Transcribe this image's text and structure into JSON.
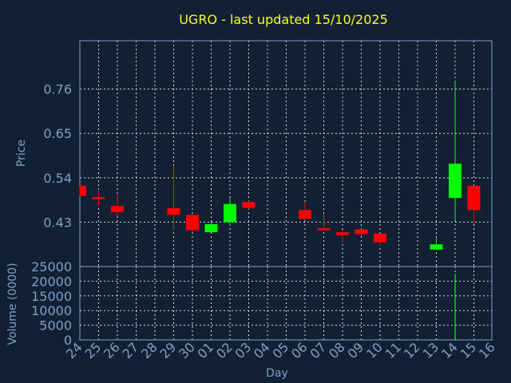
{
  "chart_data": [
    {
      "type": "candlestick",
      "title": "UGRO - last updated 15/10/2025",
      "ylabel": "Price",
      "ylim": [
        0.32,
        0.88
      ],
      "yticks": [
        0.43,
        0.54,
        0.65,
        0.76
      ],
      "ytick_labels": [
        "0.43",
        "0.54",
        "0.65",
        "0.76"
      ],
      "x_tick_labels": [
        "24",
        "25",
        "26",
        "27",
        "28",
        "29",
        "30",
        "01",
        "02",
        "03",
        "04",
        "05",
        "06",
        "07",
        "08",
        "09",
        "10",
        "11",
        "12",
        "13",
        "14",
        "15",
        "16"
      ],
      "up_color": "#00ff00",
      "down_color": "#ff0000",
      "candles": [
        {
          "day": "24",
          "open": 0.52,
          "high": 0.52,
          "low": 0.495,
          "close": 0.495
        },
        {
          "day": "25",
          "open": 0.492,
          "high": 0.512,
          "low": 0.47,
          "close": 0.487
        },
        {
          "day": "26",
          "open": 0.47,
          "high": 0.498,
          "low": 0.445,
          "close": 0.455
        },
        {
          "day": "29",
          "open": 0.465,
          "high": 0.57,
          "low": 0.41,
          "close": 0.448
        },
        {
          "day": "30",
          "open": 0.448,
          "high": 0.448,
          "low": 0.405,
          "close": 0.41
        },
        {
          "day": "01",
          "open": 0.405,
          "high": 0.43,
          "low": 0.405,
          "close": 0.425
        },
        {
          "day": "02",
          "open": 0.43,
          "high": 0.49,
          "low": 0.42,
          "close": 0.475
        },
        {
          "day": "03",
          "open": 0.48,
          "high": 0.483,
          "low": 0.462,
          "close": 0.465
        },
        {
          "day": "06",
          "open": 0.46,
          "high": 0.478,
          "low": 0.435,
          "close": 0.438
        },
        {
          "day": "07",
          "open": 0.415,
          "high": 0.45,
          "low": 0.41,
          "close": 0.41
        },
        {
          "day": "08",
          "open": 0.405,
          "high": 0.41,
          "low": 0.38,
          "close": 0.398
        },
        {
          "day": "09",
          "open": 0.412,
          "high": 0.412,
          "low": 0.395,
          "close": 0.4
        },
        {
          "day": "10",
          "open": 0.402,
          "high": 0.402,
          "low": 0.372,
          "close": 0.38
        },
        {
          "day": "13",
          "open": 0.362,
          "high": 0.39,
          "low": 0.362,
          "close": 0.375
        },
        {
          "day": "14",
          "open": 0.49,
          "high": 0.78,
          "low": 0.435,
          "close": 0.575
        },
        {
          "day": "15",
          "open": 0.52,
          "high": 0.52,
          "low": 0.425,
          "close": 0.46
        }
      ]
    },
    {
      "type": "bar",
      "xlabel": "Day",
      "ylabel": "Volume (0000)",
      "ylim": [
        0,
        25000
      ],
      "yticks": [
        0,
        5000,
        10000,
        15000,
        20000,
        25000
      ],
      "ytick_labels": [
        "0",
        "5000",
        "10000",
        "15000",
        "20000",
        "25000"
      ],
      "bar_color": "#00ff00",
      "bars": [
        {
          "day": "14",
          "value": 22500
        }
      ]
    }
  ]
}
